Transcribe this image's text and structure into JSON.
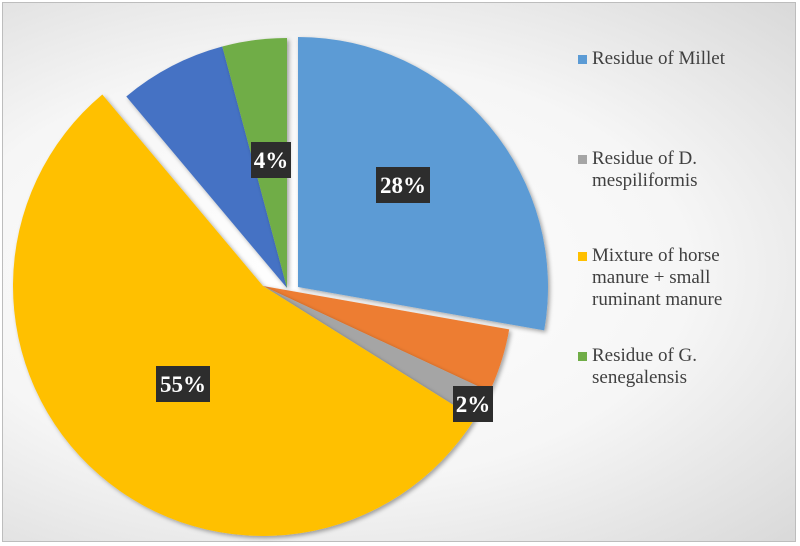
{
  "chart_data": {
    "type": "pie",
    "title": "",
    "exploded": true,
    "legend_position": "right",
    "slices": [
      {
        "name": "Residue of Millet",
        "value": 28,
        "label": "28%",
        "color": "#5b9bd5"
      },
      {
        "name": "Residue of D. mespiliformis",
        "value": 2,
        "label": "",
        "color": "#a5a5a5"
      },
      {
        "name": "Mixture of horse manure + small ruminant manure",
        "value": 55,
        "label": "55%",
        "color": "#ffc000"
      },
      {
        "name": "Residue of G. senegalensis",
        "value": 4,
        "label": "4%",
        "color": "#70ad47"
      }
    ],
    "unlabeled_slices": [
      {
        "value": 4,
        "color": "#ed7d31"
      },
      {
        "value": 7,
        "color": "#4472c4"
      }
    ],
    "extra_labels": [
      "2%"
    ]
  },
  "legend": {
    "items": [
      {
        "text": "Residue of Millet",
        "color": "#5b9bd5"
      },
      {
        "text": "Residue of D.\nmespiliformis",
        "color": "#a5a5a5"
      },
      {
        "text": "Mixture of horse\nmanure + small\nruminant manure",
        "color": "#ffc000"
      },
      {
        "text": "Residue of G.\nsenegalensis",
        "color": "#70ad47"
      }
    ]
  }
}
